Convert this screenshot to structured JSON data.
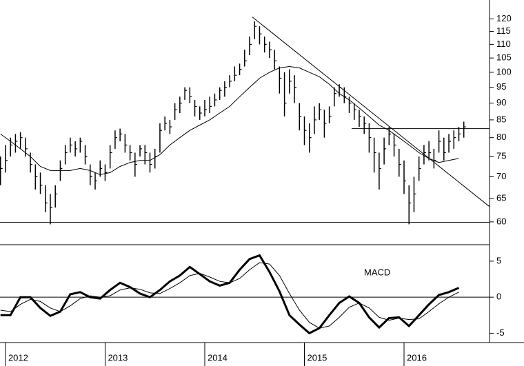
{
  "chart_data": [
    {
      "type": "ohlc",
      "color": "#000000",
      "log_scale": true,
      "xlim": [
        2011.945,
        2016.858
      ],
      "ylim": [
        55.5,
        128
      ],
      "yticks": [
        60,
        65,
        70,
        75,
        80,
        85,
        90,
        95,
        100,
        105,
        110,
        115,
        120
      ],
      "x": [
        2011.95,
        2012,
        2012.05,
        2012.1,
        2012.15,
        2012.2,
        2012.25,
        2012.3,
        2012.35,
        2012.4,
        2012.45,
        2012.5,
        2012.55,
        2012.6,
        2012.65,
        2012.7,
        2012.75,
        2012.8,
        2012.85,
        2012.9,
        2012.95,
        2013,
        2013.05,
        2013.1,
        2013.15,
        2013.2,
        2013.25,
        2013.3,
        2013.35,
        2013.4,
        2013.45,
        2013.5,
        2013.55,
        2013.6,
        2013.65,
        2013.7,
        2013.75,
        2013.8,
        2013.85,
        2013.9,
        2013.95,
        2014,
        2014.05,
        2014.1,
        2014.15,
        2014.2,
        2014.25,
        2014.3,
        2014.35,
        2014.4,
        2014.45,
        2014.5,
        2014.55,
        2014.6,
        2014.65,
        2014.7,
        2014.75,
        2014.8,
        2014.85,
        2014.9,
        2014.95,
        2015,
        2015.05,
        2015.1,
        2015.15,
        2015.2,
        2015.25,
        2015.3,
        2015.35,
        2015.4,
        2015.45,
        2015.5,
        2015.55,
        2015.6,
        2015.65,
        2015.7,
        2015.75,
        2015.8,
        2015.85,
        2015.9,
        2015.95,
        2016,
        2016.05,
        2016.1,
        2016.15,
        2016.2,
        2016.25,
        2016.3,
        2016.35,
        2016.4,
        2016.45,
        2016.5,
        2016.55,
        2016.6
      ],
      "high": [
        75,
        78,
        80,
        81,
        81.5,
        80,
        76,
        73,
        71,
        68,
        66,
        68,
        74,
        78,
        80,
        79,
        80,
        78,
        73,
        71,
        74,
        73,
        78,
        82,
        82.5,
        81,
        78,
        76,
        78,
        78,
        76,
        77,
        84,
        86,
        85,
        90,
        92,
        95,
        95,
        91,
        89,
        91,
        92,
        93,
        95,
        97,
        99,
        102,
        103,
        108,
        113,
        119,
        117,
        113,
        111,
        108,
        102,
        100,
        101,
        99,
        90,
        86,
        84,
        89,
        90,
        88,
        89,
        95,
        96,
        95,
        92,
        90,
        88,
        86,
        84,
        80,
        76,
        80,
        83,
        81,
        77,
        74,
        68,
        70,
        75,
        78,
        79,
        77,
        82,
        80,
        81,
        82,
        83,
        84.5
      ],
      "low": [
        68,
        71,
        75,
        76,
        77,
        75,
        71,
        67,
        66,
        62,
        59.5,
        63,
        69,
        73,
        76,
        75,
        76,
        73,
        68,
        67,
        70,
        69,
        72,
        77,
        79,
        76,
        74,
        70,
        75,
        73,
        71,
        72,
        76,
        82,
        81,
        85,
        87,
        91,
        90,
        86,
        85,
        86,
        87,
        89,
        91,
        92,
        95,
        97,
        99,
        102,
        106,
        112,
        110,
        107,
        105,
        101,
        93,
        86,
        93,
        90,
        82,
        78,
        76,
        81,
        85,
        80,
        84,
        89,
        92,
        90,
        87,
        85,
        83,
        81,
        76,
        71,
        67,
        73,
        78,
        75,
        70,
        66,
        59.5,
        62,
        69,
        73,
        74,
        72,
        76,
        74,
        76,
        77,
        79,
        80
      ],
      "close": [
        72,
        74,
        78,
        79,
        80,
        77,
        73,
        70,
        68,
        64,
        63,
        66,
        72,
        76,
        78,
        77,
        79,
        75,
        70,
        69,
        72,
        71,
        76,
        80,
        81,
        78,
        76,
        73,
        77,
        76,
        73,
        75,
        82,
        84,
        83,
        88,
        90,
        94,
        92,
        89,
        87,
        88,
        89,
        91,
        94,
        95,
        97,
        99,
        101,
        104,
        110,
        117,
        114,
        110,
        108,
        104,
        98,
        90,
        97,
        95,
        86,
        82,
        80,
        85,
        88,
        84,
        86,
        93,
        95,
        92,
        90,
        88,
        86,
        84,
        80,
        76,
        72,
        77,
        81,
        78,
        73,
        69,
        64,
        66,
        72,
        76,
        76,
        74,
        79,
        76,
        79,
        80,
        81,
        83
      ],
      "series": [
        {
          "color": "#000000",
          "x": [
            2011.95,
            2012.05,
            2012.15,
            2012.25,
            2012.35,
            2012.45,
            2012.55,
            2012.65,
            2012.75,
            2012.85,
            2012.95,
            2013.05,
            2013.15,
            2013.25,
            2013.35,
            2013.45,
            2013.55,
            2013.65,
            2013.75,
            2013.85,
            2013.95,
            2014.05,
            2014.15,
            2014.25,
            2014.35,
            2014.45,
            2014.55,
            2014.65,
            2014.75,
            2014.85,
            2014.95,
            2015.05,
            2015.15,
            2015.25,
            2015.35,
            2015.45,
            2015.55,
            2015.65,
            2015.75,
            2015.85,
            2015.95,
            2016.05,
            2016.15,
            2016.25,
            2016.35,
            2016.45,
            2016.55
          ],
          "values": [
            81,
            79,
            77,
            75,
            72.5,
            71.5,
            71.5,
            71.5,
            72,
            71.5,
            70.5,
            71,
            72.5,
            73.5,
            74,
            74,
            75.5,
            78,
            80,
            82,
            83.5,
            85,
            87,
            89,
            92,
            95,
            98,
            100,
            101.5,
            102,
            101.5,
            100,
            98.5,
            96,
            93,
            91,
            88.5,
            86,
            83.5,
            82,
            80,
            78,
            76,
            74.5,
            73.5,
            74,
            74.5
          ]
        }
      ],
      "lines": [
        {
          "x": [
            2014.477,
            2016.858
          ],
          "values": [
            120.8,
            63.2
          ]
        },
        {
          "x": [
            2015.474,
            2016.858
          ],
          "values": [
            82.5,
            82.5
          ]
        },
        {
          "x": [
            2011.945,
            2016.858
          ],
          "values": [
            59.9,
            59.9
          ]
        }
      ]
    },
    {
      "type": "line",
      "zero_line": true,
      "xlim": [
        2011.945,
        2016.858
      ],
      "ylim": [
        -6.3,
        7
      ],
      "yticks": [
        -5,
        0,
        5
      ],
      "xticks": [
        2012,
        2013,
        2014,
        2015,
        2016
      ],
      "series": [
        {
          "name": "MACD",
          "color": "#000000",
          "x": [
            2011.95,
            2012.05,
            2012.15,
            2012.25,
            2012.35,
            2012.45,
            2012.55,
            2012.65,
            2012.75,
            2012.85,
            2012.95,
            2013.05,
            2013.15,
            2013.25,
            2013.35,
            2013.45,
            2013.55,
            2013.65,
            2013.75,
            2013.85,
            2013.95,
            2014.05,
            2014.15,
            2014.25,
            2014.35,
            2014.45,
            2014.55,
            2014.65,
            2014.75,
            2014.85,
            2014.95,
            2015.05,
            2015.15,
            2015.25,
            2015.35,
            2015.45,
            2015.55,
            2015.65,
            2015.75,
            2015.85,
            2015.95,
            2016.05,
            2016.15,
            2016.25,
            2016.35,
            2016.45,
            2016.55
          ],
          "values": [
            -2.5,
            -2.5,
            0,
            0,
            -1.5,
            -2.6,
            -2,
            0.4,
            0.7,
            0,
            -0.2,
            1,
            2,
            1.4,
            0.5,
            0,
            1,
            2.2,
            3,
            4.2,
            3.2,
            2.2,
            1.6,
            2,
            3.8,
            5.3,
            5.8,
            3.5,
            0.8,
            -2.5,
            -3.8,
            -5,
            -4.3,
            -2.5,
            -0.8,
            0.1,
            -0.8,
            -2.8,
            -4.2,
            -2.9,
            -2.8,
            -4,
            -2.5,
            -1,
            0.3,
            0.7,
            1.3
          ]
        },
        {
          "color": "#000000",
          "x": [
            2011.95,
            2012.05,
            2012.15,
            2012.25,
            2012.35,
            2012.45,
            2012.55,
            2012.65,
            2012.75,
            2012.85,
            2012.95,
            2013.05,
            2013.15,
            2013.25,
            2013.35,
            2013.45,
            2013.55,
            2013.65,
            2013.75,
            2013.85,
            2013.95,
            2014.05,
            2014.15,
            2014.25,
            2014.35,
            2014.45,
            2014.55,
            2014.65,
            2014.75,
            2014.85,
            2014.95,
            2015.05,
            2015.15,
            2015.25,
            2015.35,
            2015.45,
            2015.55,
            2015.65,
            2015.75,
            2015.85,
            2015.95,
            2016.05,
            2016.15,
            2016.25,
            2016.35,
            2016.45,
            2016.55
          ],
          "values": [
            -1.8,
            -2,
            -1,
            -0.3,
            -0.6,
            -1.5,
            -2,
            -1.2,
            -0.2,
            0.2,
            0,
            0.2,
            1,
            1.3,
            1.1,
            0.6,
            0.5,
            1.2,
            2,
            3,
            3.3,
            2.8,
            2.2,
            2,
            2.6,
            3.8,
            4.8,
            4.6,
            3,
            0.5,
            -1.8,
            -3.5,
            -4.3,
            -4,
            -2.8,
            -1.4,
            -0.8,
            -1.5,
            -2.8,
            -3.2,
            -2.9,
            -3.1,
            -3,
            -2,
            -0.9,
            0,
            0.7
          ]
        }
      ]
    }
  ]
}
